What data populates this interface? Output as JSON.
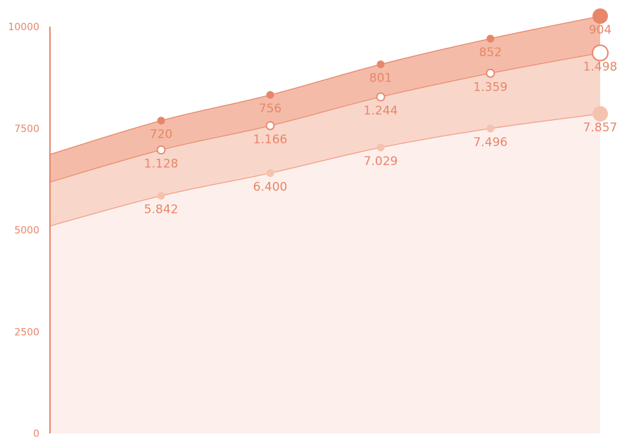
{
  "chart_data": {
    "type": "area",
    "stacked": true,
    "x": [
      0,
      1,
      2,
      3,
      4,
      5
    ],
    "ylim": [
      0,
      10000
    ],
    "y_ticks": [
      "0",
      "2500",
      "5000",
      "7500",
      "10000"
    ],
    "grid": false,
    "colors": {
      "axis": "#e8866a",
      "label": "#e8866a"
    },
    "series": [
      {
        "values": [
          5100,
          5842,
          6400,
          7029,
          7496,
          7857
        ],
        "labels": [
          "",
          "5.842",
          "6.400",
          "7.029",
          "7.496",
          "7.857"
        ],
        "fill": "#fdf0ec",
        "line": "#f0a088",
        "marker": "#f5c2b0",
        "marker_style": "filled"
      },
      {
        "values": [
          1080,
          1128,
          1166,
          1244,
          1359,
          1498
        ],
        "labels": [
          "",
          "1.128",
          "1.166",
          "1.244",
          "1.359",
          "1.498"
        ],
        "fill": "#f9d6ca",
        "line": "#ec8e72",
        "marker": "#e8866a",
        "marker_style": "hollow"
      },
      {
        "values": [
          680,
          720,
          756,
          801,
          852,
          904
        ],
        "labels": [
          "",
          "720",
          "756",
          "801",
          "852",
          "904"
        ],
        "fill": "#f4bca8",
        "line": "#e8866a",
        "marker": "#e8866a",
        "marker_style": "filled"
      }
    ]
  }
}
